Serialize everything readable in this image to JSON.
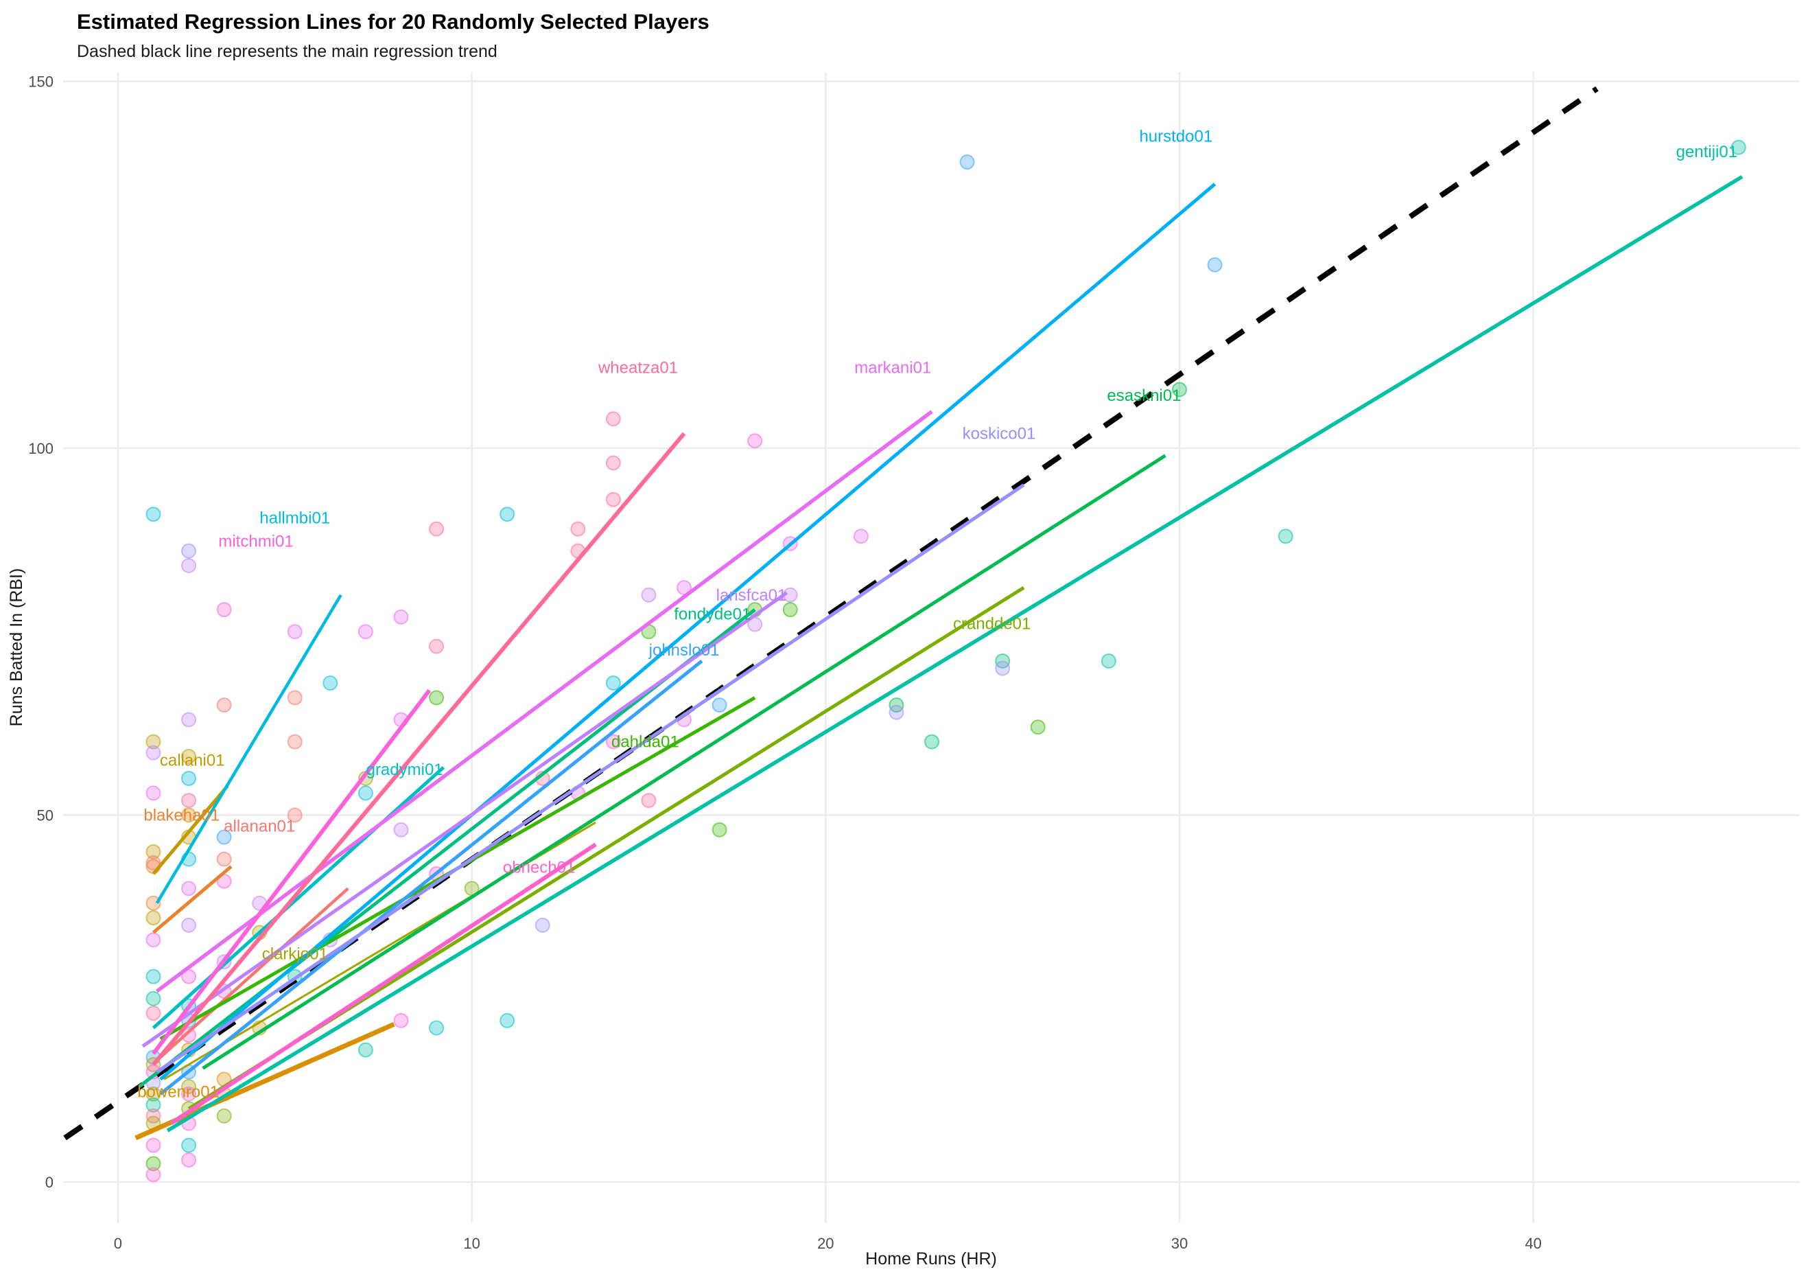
{
  "title": "Estimated Regression Lines for 20 Randomly Selected Players",
  "subtitle": "Dashed black line represents the main regression trend",
  "chart_data": {
    "type": "scatter",
    "title": "Estimated Regression Lines for 20 Randomly Selected Players",
    "subtitle": "Dashed black line represents the main regression trend",
    "xlabel": "Home Runs (HR)",
    "ylabel": "Runs Batted In (RBI)",
    "x_ticks": [
      0,
      10,
      20,
      30,
      40
    ],
    "y_ticks": [
      0,
      50,
      100,
      150
    ],
    "xlim": [
      -1.55,
      47.53
    ],
    "ylim": [
      -5.52,
      151.26
    ],
    "grid": true,
    "gridline_color": "#ebebeb",
    "background": "#ffffff",
    "trend_line": {
      "description": "main regression trend",
      "style": "dashed",
      "color": "#000000",
      "x1": -1.5,
      "y1": 6.0,
      "x2": 41.8,
      "y2": 149.0
    },
    "players": [
      {
        "name": "allanan01",
        "color": "#F8766D",
        "x1": 1.2,
        "y1": 17.0,
        "x2": 6.5,
        "y2": 40.0,
        "label_x": 4.0,
        "label_y": 48.5,
        "width": 4.5
      },
      {
        "name": "blakeha01",
        "color": "#EA8331",
        "x1": 1.0,
        "y1": 34.0,
        "x2": 3.2,
        "y2": 43.0,
        "label_x": 1.8,
        "label_y": 50.0,
        "width": 5
      },
      {
        "name": "bowenro01",
        "color": "#D89000",
        "x1": 0.5,
        "y1": 6.0,
        "x2": 7.8,
        "y2": 21.5,
        "label_x": 1.7,
        "label_y": 12.3,
        "width": 7
      },
      {
        "name": "callani01",
        "color": "#C09B00",
        "x1": 1.0,
        "y1": 42.0,
        "x2": 3.1,
        "y2": 54.0,
        "label_x": 2.1,
        "label_y": 57.5,
        "width": 5
      },
      {
        "name": "clarkjo01",
        "color": "#A3A500",
        "x1": 1.3,
        "y1": 14.0,
        "x2": 13.5,
        "y2": 49.0,
        "label_x": 5.0,
        "label_y": 31.1,
        "width": 3
      },
      {
        "name": "crandde01",
        "color": "#7CAE00",
        "x1": 2.0,
        "y1": 10.0,
        "x2": 25.6,
        "y2": 81.0,
        "label_x": 24.7,
        "label_y": 76.1,
        "width": 5
      },
      {
        "name": "dahlda01",
        "color": "#39B600",
        "x1": 1.2,
        "y1": 19.5,
        "x2": 18.0,
        "y2": 66.0,
        "label_x": 14.9,
        "label_y": 60.0,
        "width": 5
      },
      {
        "name": "esaskni01",
        "color": "#00BB4E",
        "x1": 2.4,
        "y1": 15.5,
        "x2": 29.6,
        "y2": 99.0,
        "label_x": 29.0,
        "label_y": 107.2,
        "width": 5
      },
      {
        "name": "fondyde01",
        "color": "#00BF7D",
        "x1": 0.6,
        "y1": 13.0,
        "x2": 18.0,
        "y2": 78.0,
        "label_x": 16.8,
        "label_y": 77.4,
        "width": 5
      },
      {
        "name": "gentiji01",
        "color": "#00C1A3",
        "x1": 1.4,
        "y1": 7.0,
        "x2": 45.9,
        "y2": 137.0,
        "label_x": 44.9,
        "label_y": 140.4,
        "width": 5.5
      },
      {
        "name": "gradymi01",
        "color": "#00BFC4",
        "x1": 1.0,
        "y1": 21.0,
        "x2": 9.2,
        "y2": 56.5,
        "label_x": 8.1,
        "label_y": 56.2,
        "width": 5
      },
      {
        "name": "hallmbi01",
        "color": "#00BAE0",
        "x1": 1.1,
        "y1": 38.0,
        "x2": 6.3,
        "y2": 80.0,
        "label_x": 5.0,
        "label_y": 90.5,
        "width": 4.5
      },
      {
        "name": "hurstdo01",
        "color": "#00B0F6",
        "x1": 1.2,
        "y1": 14.0,
        "x2": 31.0,
        "y2": 136.0,
        "label_x": 29.9,
        "label_y": 142.5,
        "width": 5
      },
      {
        "name": "johnslo01",
        "color": "#35A2FF",
        "x1": 1.2,
        "y1": 12.0,
        "x2": 16.5,
        "y2": 71.0,
        "label_x": 16.0,
        "label_y": 72.5,
        "width": 5
      },
      {
        "name": "koskico01",
        "color": "#9590FF",
        "x1": 1.1,
        "y1": 15.0,
        "x2": 25.6,
        "y2": 95.0,
        "label_x": 24.9,
        "label_y": 102.0,
        "width": 5
      },
      {
        "name": "lansfca01",
        "color": "#BF80FF",
        "x1": 0.7,
        "y1": 18.5,
        "x2": 18.9,
        "y2": 80.3,
        "label_x": 17.9,
        "label_y": 80.0,
        "width": 5
      },
      {
        "name": "markani01",
        "color": "#E76BF3",
        "x1": 1.1,
        "y1": 26.0,
        "x2": 23.0,
        "y2": 105.0,
        "label_x": 21.9,
        "label_y": 111.0,
        "width": 5.5
      },
      {
        "name": "mitchmi01",
        "color": "#FA62DB",
        "x1": 1.0,
        "y1": 17.5,
        "x2": 8.8,
        "y2": 67.0,
        "label_x": 3.9,
        "label_y": 87.3,
        "width": 6
      },
      {
        "name": "obriech01",
        "color": "#FF61CC",
        "x1": 1.5,
        "y1": 8.0,
        "x2": 13.5,
        "y2": 46.0,
        "label_x": 11.9,
        "label_y": 42.9,
        "width": 6
      },
      {
        "name": "wheatza01",
        "color": "#FF6A98",
        "x1": 1.0,
        "y1": 16.0,
        "x2": 16.0,
        "y2": 102.0,
        "label_x": 14.7,
        "label_y": 111.0,
        "width": 6
      }
    ],
    "points": [
      [
        1,
        91,
        11
      ],
      [
        1,
        60,
        3
      ],
      [
        1,
        58.5,
        15
      ],
      [
        1,
        53,
        16
      ],
      [
        1,
        45,
        3
      ],
      [
        1,
        43.5,
        0
      ],
      [
        1,
        43,
        1
      ],
      [
        1,
        38,
        1
      ],
      [
        1,
        36,
        3
      ],
      [
        1,
        33,
        16
      ],
      [
        1,
        28,
        10
      ],
      [
        1,
        25,
        9
      ],
      [
        1,
        23,
        19
      ],
      [
        1,
        17,
        13
      ],
      [
        1,
        16,
        3
      ],
      [
        1,
        15,
        17
      ],
      [
        1,
        13.5,
        14
      ],
      [
        1,
        12,
        4
      ],
      [
        1,
        10.5,
        9
      ],
      [
        1,
        9,
        19
      ],
      [
        1,
        8,
        4
      ],
      [
        1,
        5,
        17
      ],
      [
        1,
        2.5,
        6
      ],
      [
        1,
        1,
        17
      ],
      [
        2,
        86,
        14
      ],
      [
        2,
        84,
        15
      ],
      [
        2,
        63,
        15
      ],
      [
        2,
        58,
        3
      ],
      [
        2,
        55,
        11
      ],
      [
        2,
        52,
        19
      ],
      [
        2,
        50,
        2
      ],
      [
        2,
        47,
        3
      ],
      [
        2,
        44,
        11
      ],
      [
        2,
        40,
        16
      ],
      [
        2,
        35,
        15
      ],
      [
        2,
        28,
        17
      ],
      [
        2,
        24,
        10
      ],
      [
        2,
        22,
        13
      ],
      [
        2,
        20,
        17
      ],
      [
        2,
        18,
        2
      ],
      [
        2,
        15,
        13
      ],
      [
        2,
        13,
        4
      ],
      [
        2,
        12,
        17
      ],
      [
        2,
        10,
        5
      ],
      [
        2,
        8,
        17
      ],
      [
        2,
        5,
        10
      ],
      [
        2,
        3,
        17
      ],
      [
        3,
        78,
        17
      ],
      [
        3,
        65,
        0
      ],
      [
        3,
        47,
        13
      ],
      [
        3,
        44,
        0
      ],
      [
        3,
        41,
        17
      ],
      [
        3,
        30,
        15
      ],
      [
        3,
        26,
        17
      ],
      [
        3,
        14,
        2
      ],
      [
        3,
        12,
        1
      ],
      [
        3,
        9,
        5
      ],
      [
        4,
        38,
        15
      ],
      [
        4,
        34,
        4
      ],
      [
        4,
        21,
        3
      ],
      [
        5,
        75,
        16
      ],
      [
        5,
        66,
        0
      ],
      [
        5,
        60,
        0
      ],
      [
        5,
        50,
        0
      ],
      [
        5,
        28,
        9
      ],
      [
        6,
        68,
        11
      ],
      [
        6,
        33,
        15
      ],
      [
        7,
        75,
        16
      ],
      [
        7,
        55,
        4
      ],
      [
        7,
        53,
        11
      ],
      [
        7,
        18,
        9
      ],
      [
        8,
        77,
        16
      ],
      [
        8,
        63,
        16
      ],
      [
        8,
        48,
        15
      ],
      [
        8,
        22,
        17
      ],
      [
        9,
        89,
        19
      ],
      [
        9,
        73,
        19
      ],
      [
        9,
        66,
        6
      ],
      [
        9,
        42,
        17
      ],
      [
        9,
        21,
        10
      ],
      [
        10,
        40,
        5
      ],
      [
        11,
        91,
        11
      ],
      [
        11,
        22,
        10
      ],
      [
        12,
        55,
        19
      ],
      [
        12,
        35,
        14
      ],
      [
        13,
        89,
        19
      ],
      [
        13,
        86,
        19
      ],
      [
        13,
        53,
        16
      ],
      [
        14,
        104,
        19
      ],
      [
        14,
        98,
        19
      ],
      [
        14,
        93,
        19
      ],
      [
        14,
        68,
        11
      ],
      [
        14,
        60,
        17
      ],
      [
        15,
        80,
        15
      ],
      [
        15,
        75,
        6
      ],
      [
        15,
        52,
        19
      ],
      [
        16,
        81,
        16
      ],
      [
        16,
        63,
        16
      ],
      [
        17,
        65,
        13
      ],
      [
        17,
        48,
        6
      ],
      [
        18,
        101,
        17
      ],
      [
        18,
        78,
        6
      ],
      [
        18,
        76,
        15
      ],
      [
        19,
        87,
        16
      ],
      [
        19,
        80,
        15
      ],
      [
        19,
        78,
        6
      ],
      [
        21,
        88,
        16
      ],
      [
        22,
        65,
        7
      ],
      [
        22,
        64,
        14
      ],
      [
        23,
        60,
        8
      ],
      [
        24,
        139,
        13
      ],
      [
        25,
        71,
        8
      ],
      [
        25,
        70,
        14
      ],
      [
        26,
        62,
        6
      ],
      [
        28,
        71,
        9
      ],
      [
        30,
        108,
        7
      ],
      [
        31,
        125,
        13
      ],
      [
        33,
        88,
        9
      ],
      [
        45.8,
        141,
        9
      ]
    ],
    "point_style": {
      "radius": 10,
      "fill_opacity": 0.32,
      "stroke_opacity": 0.55
    }
  }
}
